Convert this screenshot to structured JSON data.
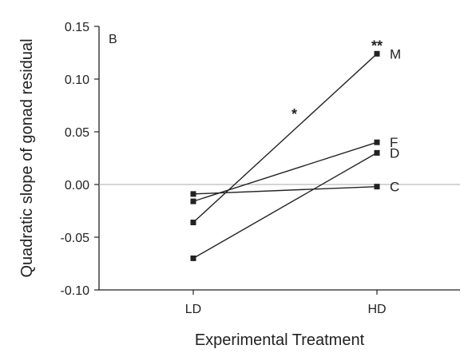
{
  "chart_data": {
    "type": "line",
    "panel_label": "B",
    "xlabel": "Experimental Treatment",
    "ylabel": "Quadratic slope of gonad residual",
    "categories": [
      "LD",
      "HD"
    ],
    "ylim": [
      -0.1,
      0.15
    ],
    "yticks": [
      "-0.10",
      "-0.05",
      "0.00",
      "0.05",
      "0.10",
      "0.15"
    ],
    "ytick_values": [
      -0.1,
      -0.05,
      0.0,
      0.05,
      0.1,
      0.15
    ],
    "zero_line": true,
    "grid": false,
    "series": [
      {
        "name": "M",
        "values": [
          -0.036,
          0.124
        ]
      },
      {
        "name": "F",
        "values": [
          -0.016,
          0.04
        ]
      },
      {
        "name": "D",
        "values": [
          -0.07,
          0.03
        ]
      },
      {
        "name": "C",
        "values": [
          -0.009,
          -0.002
        ]
      }
    ],
    "annotations": [
      {
        "text": "*",
        "x": 0.55,
        "y": 0.068
      },
      {
        "text": "**",
        "x": 1.0,
        "y": 0.133
      }
    ],
    "colors": {
      "line": "#222222",
      "axis": "#222222",
      "zero_line": "#aaaaaa"
    }
  }
}
